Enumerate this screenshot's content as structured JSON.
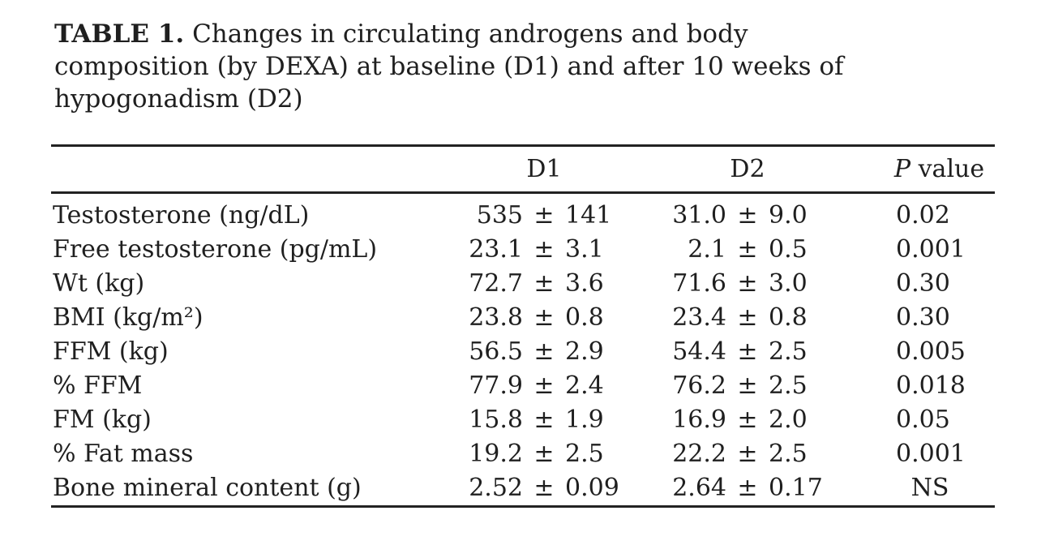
{
  "title": {
    "bold": "TABLE 1.",
    "lines": [
      "Changes in circulating androgens and body",
      "composition (by DEXA) at baseline (D1) and after 10 weeks of",
      "hypogonadism (D2)"
    ]
  },
  "header": {
    "d1": "D1",
    "d2": "D2",
    "p_italic": "P",
    "p_rest": "value"
  },
  "rows": [
    {
      "label": "Testosterone (ng/dL)",
      "d1": "535 ± 141",
      "d2": "31.0 ± 9.0",
      "p": "0.02"
    },
    {
      "label": "Free testosterone (pg/mL)",
      "d1": "23.1 ± 3.1",
      "d2": "2.1 ± 0.5",
      "p": "0.001"
    },
    {
      "label": "Wt (kg)",
      "d1": "72.7 ± 3.6",
      "d2": "71.6 ± 3.0",
      "p": "0.30"
    },
    {
      "label": "BMI (kg/m²)",
      "d1": "23.8 ± 0.8",
      "d2": "23.4 ± 0.8",
      "p": "0.30"
    },
    {
      "label": "FFM (kg)",
      "d1": "56.5 ± 2.9",
      "d2": "54.4 ± 2.5",
      "p": "0.005"
    },
    {
      "label": "% FFM",
      "d1": "77.9 ± 2.4",
      "d2": "76.2 ± 2.5",
      "p": "0.018"
    },
    {
      "label": "FM (kg)",
      "d1": "15.8 ± 1.9",
      "d2": "16.9 ± 2.0",
      "p": "0.05"
    },
    {
      "label": "% Fat mass",
      "d1": "19.2 ± 2.5",
      "d2": "22.2 ± 2.5",
      "p": "0.001"
    },
    {
      "label": "Bone mineral content (g)",
      "d1": "2.52 ± 0.09",
      "d2": "2.64 ± 0.17",
      "p": "NS"
    }
  ],
  "colors": {
    "text": "#1f1f1f",
    "rule": "#222222",
    "background": "#ffffff"
  }
}
